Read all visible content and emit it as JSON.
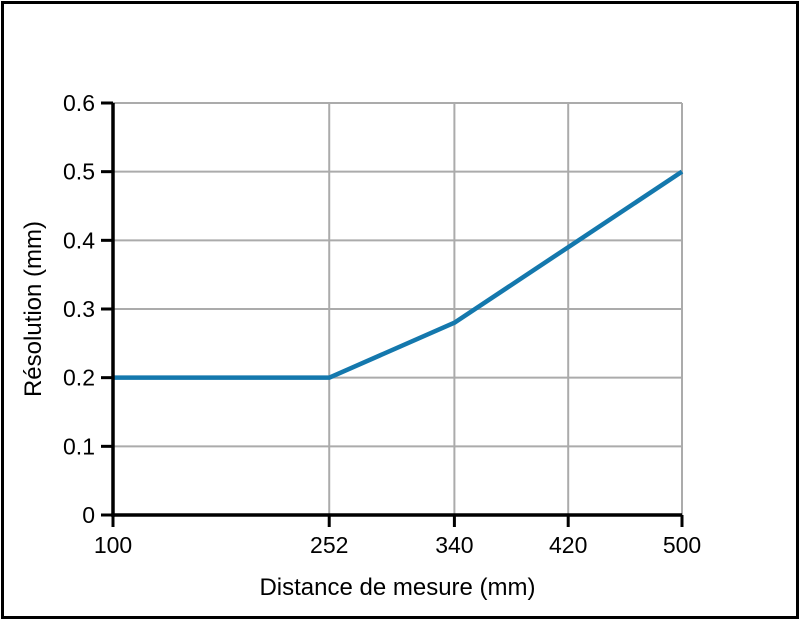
{
  "figure": {
    "background": "#ffffff",
    "border_color": "#000000"
  },
  "chart_data": {
    "type": "line",
    "title": "",
    "xlabel": "Distance de mesure (mm)",
    "ylabel": "Résolution (mm)",
    "xlim": [
      100,
      500
    ],
    "ylim": [
      0,
      0.6
    ],
    "grid": true,
    "legend": "none",
    "x_ticks": [
      {
        "value": 100,
        "label": "100"
      },
      {
        "value": 252,
        "label": "252"
      },
      {
        "value": 340,
        "label": "340"
      },
      {
        "value": 420,
        "label": "420"
      },
      {
        "value": 500,
        "label": "500"
      }
    ],
    "y_ticks": [
      {
        "value": 0,
        "label": "0"
      },
      {
        "value": 0.1,
        "label": "0.1"
      },
      {
        "value": 0.2,
        "label": "0.2"
      },
      {
        "value": 0.3,
        "label": "0.3"
      },
      {
        "value": 0.4,
        "label": "0.4"
      },
      {
        "value": 0.5,
        "label": "0.5"
      },
      {
        "value": 0.6,
        "label": "0.6"
      }
    ],
    "series": [
      {
        "name": "Résolution",
        "color": "#1478ad",
        "points": [
          {
            "x": 100,
            "y": 0.2
          },
          {
            "x": 252,
            "y": 0.2
          },
          {
            "x": 340,
            "y": 0.28
          },
          {
            "x": 420,
            "y": 0.39
          },
          {
            "x": 500,
            "y": 0.5
          }
        ]
      }
    ],
    "colors": {
      "grid": "#ababab",
      "axis": "#000000",
      "tick_text": "#000000"
    }
  }
}
